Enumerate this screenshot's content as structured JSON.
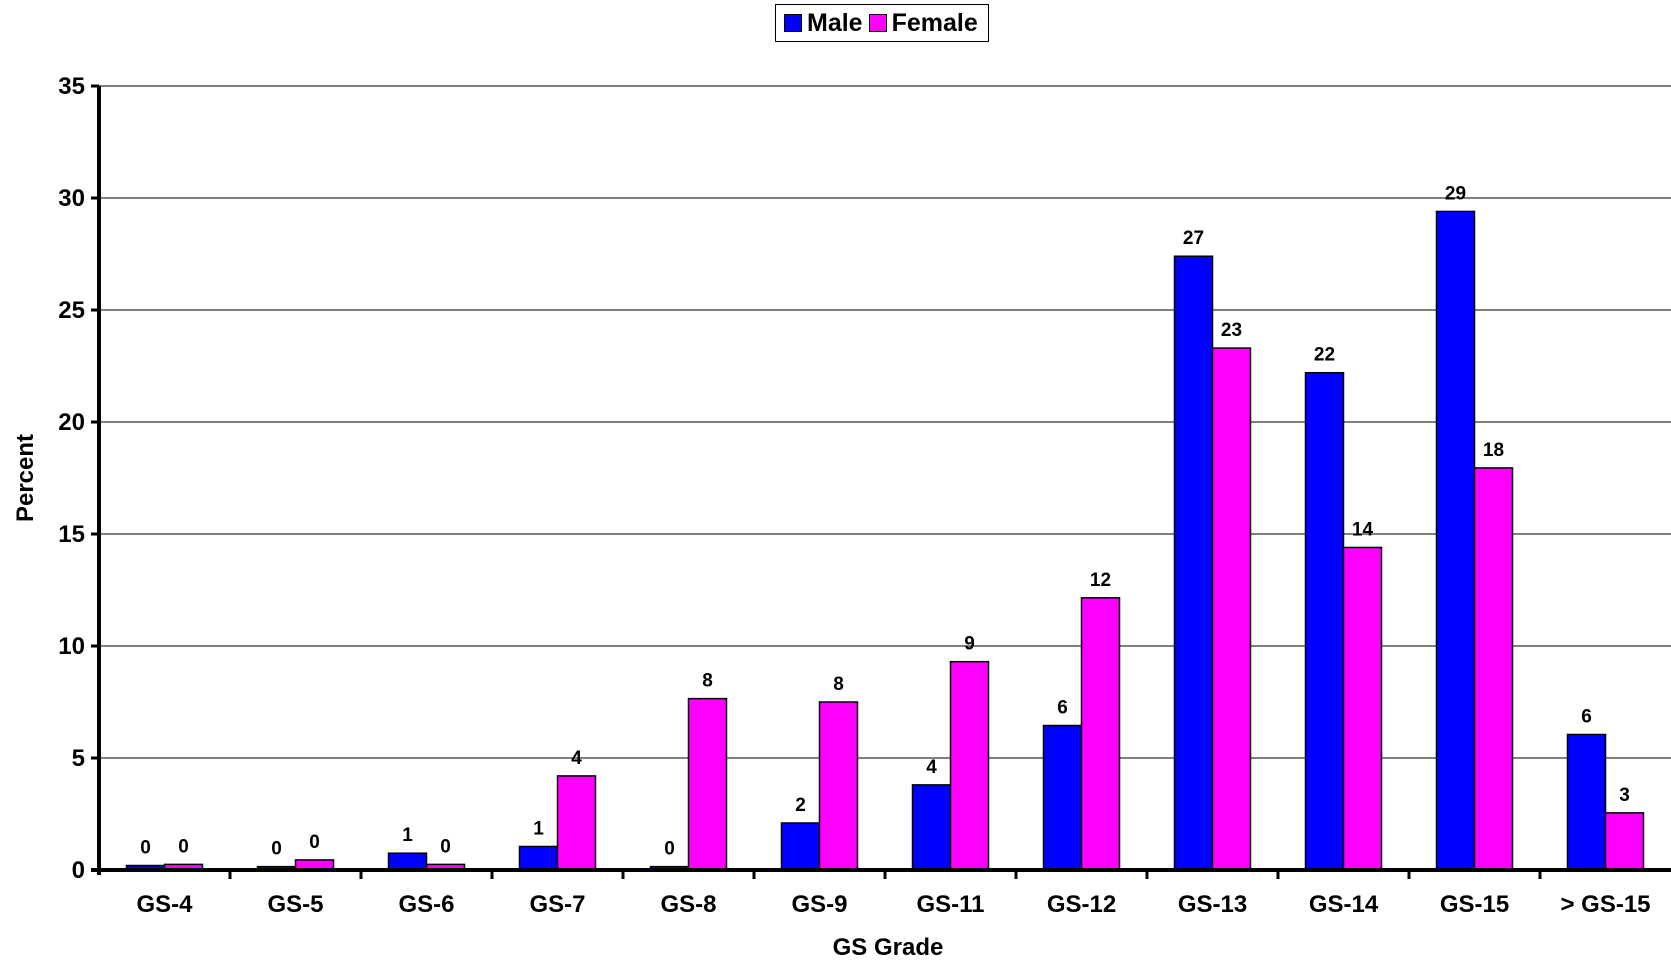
{
  "chart_data": {
    "type": "bar",
    "title": "",
    "xlabel": "GS Grade",
    "ylabel": "Percent",
    "ylim": [
      0,
      35
    ],
    "yticks": [
      0,
      5,
      10,
      15,
      20,
      25,
      30,
      35
    ],
    "grid": "horizontal",
    "legend_position": "top-center",
    "categories": [
      "GS-4",
      "GS-5",
      "GS-6",
      "GS-7",
      "GS-8",
      "GS-9",
      "GS-11",
      "GS-12",
      "GS-13",
      "GS-14",
      "GS-15",
      "> GS-15"
    ],
    "series": [
      {
        "name": "Male",
        "color": "#0000FF",
        "values": [
          0.2,
          0.15,
          0.75,
          1.05,
          0.15,
          2.1,
          3.8,
          6.45,
          27.4,
          22.2,
          29.4,
          6.05
        ],
        "labels": [
          "0",
          "0",
          "1",
          "1",
          "0",
          "2",
          "4",
          "6",
          "27",
          "22",
          "29",
          "6"
        ]
      },
      {
        "name": "Female",
        "color": "#FF00FF",
        "values": [
          0.25,
          0.45,
          0.25,
          4.2,
          7.65,
          7.5,
          9.3,
          12.15,
          23.3,
          14.4,
          17.95,
          2.55
        ],
        "labels": [
          "0",
          "0",
          "0",
          "4",
          "8",
          "8",
          "9",
          "12",
          "23",
          "14",
          "18",
          "3"
        ]
      }
    ]
  }
}
